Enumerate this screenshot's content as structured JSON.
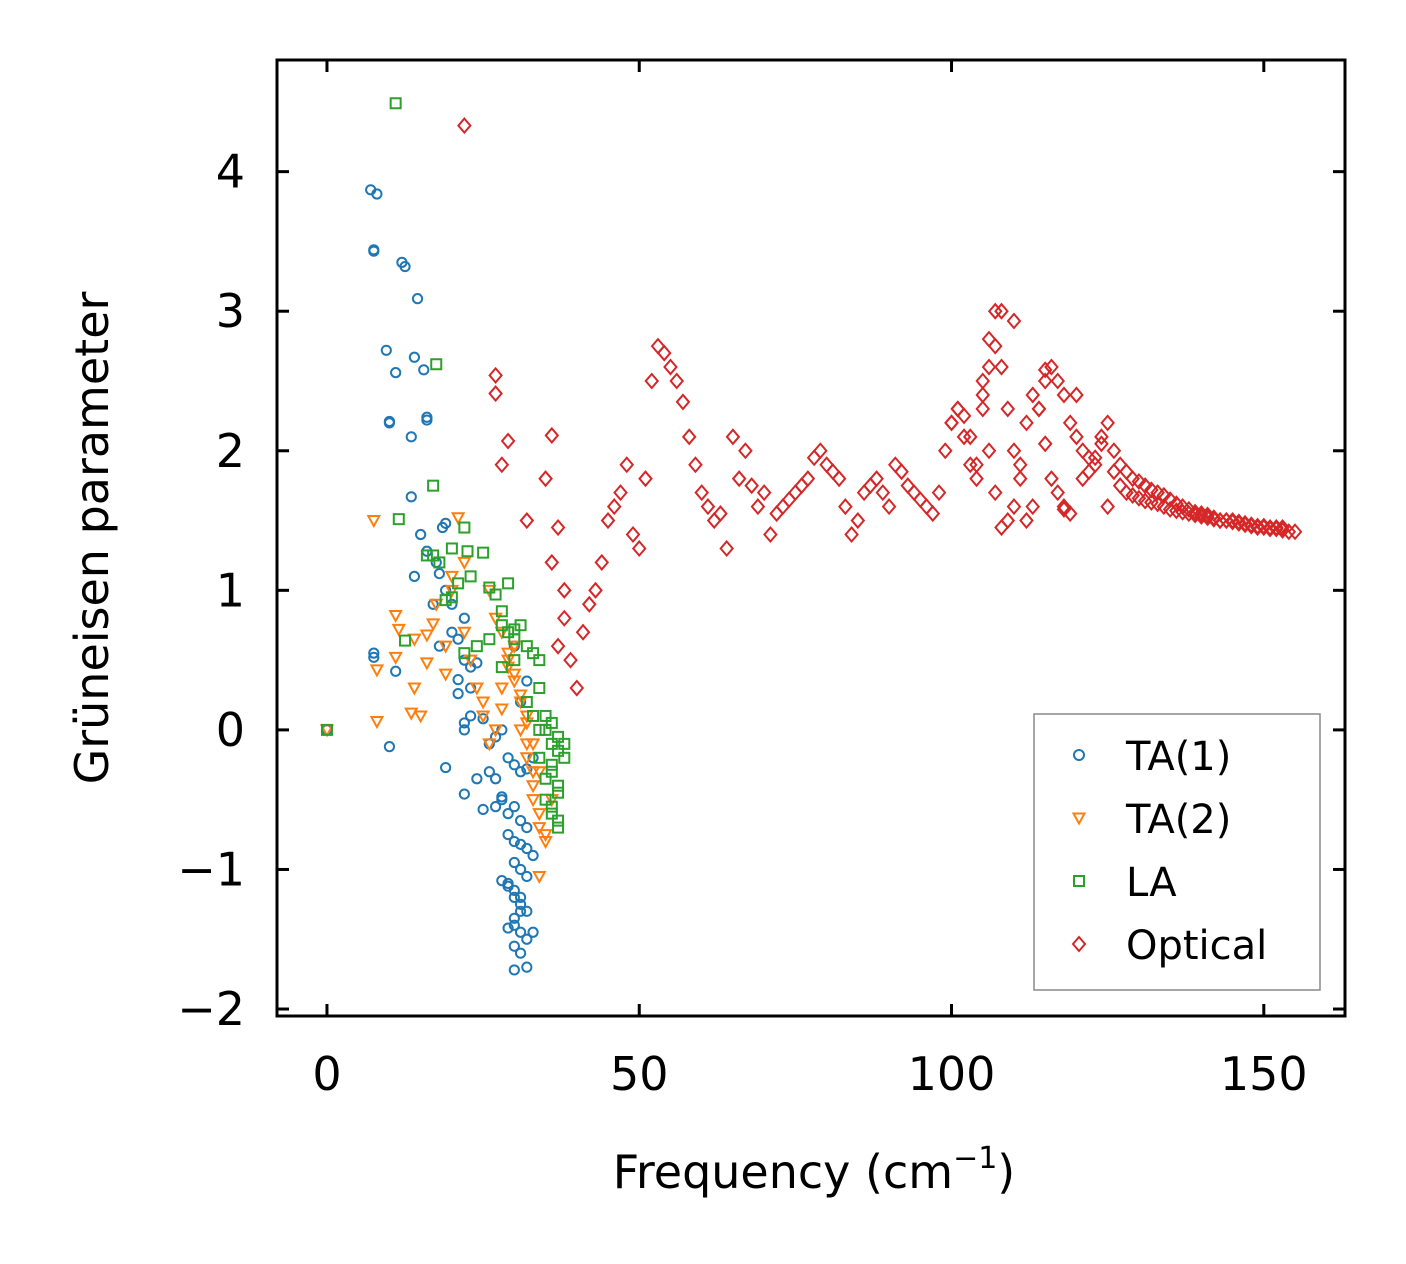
{
  "chart_data": {
    "type": "scatter",
    "title": "",
    "xlabel": "Frequency (cm",
    "xlabel_sup": "−1",
    "xlabel_tail": ")",
    "ylabel": "Grüneisen parameter",
    "xlim": [
      -8,
      163
    ],
    "ylim": [
      -2.05,
      4.8
    ],
    "xticks": [
      0,
      50,
      100,
      150
    ],
    "xtick_labels": [
      "0",
      "50",
      "100",
      "150"
    ],
    "yticks": [
      -2,
      -1,
      0,
      1,
      2,
      3,
      4
    ],
    "ytick_labels": [
      "−2",
      "−1",
      "0",
      "1",
      "2",
      "3",
      "4"
    ],
    "grid": false,
    "legend_position": "lower-right",
    "series": [
      {
        "name": "TA(1)",
        "marker": "circle",
        "color": "#1f77b4",
        "x": [
          0,
          7,
          8,
          7.5,
          7.5,
          9.5,
          12,
          12.5,
          11,
          14.5,
          10,
          14,
          15.5,
          16,
          10,
          13.5,
          16,
          13.5,
          19,
          18.5,
          16,
          15,
          17.5,
          14,
          18,
          17,
          19,
          22,
          18,
          20,
          21,
          22,
          23,
          24,
          21,
          22,
          23,
          25,
          26,
          27,
          28,
          29,
          30,
          31,
          32,
          33,
          26,
          27,
          28,
          29,
          30,
          31,
          32,
          29,
          30,
          31,
          32,
          33,
          30,
          31,
          32,
          29,
          30,
          31,
          31,
          32,
          30,
          30,
          31,
          32,
          33,
          28,
          29,
          30,
          31,
          29,
          30,
          31,
          32,
          30,
          7.5,
          7.5,
          10,
          11,
          19,
          22,
          25,
          27,
          24,
          22,
          23,
          21,
          20,
          28,
          30,
          31,
          32
        ],
        "y": [
          0,
          3.87,
          3.84,
          3.44,
          3.43,
          2.72,
          3.35,
          3.32,
          2.56,
          3.09,
          2.21,
          2.67,
          2.58,
          2.24,
          2.2,
          2.1,
          2.22,
          1.67,
          1.48,
          1.45,
          1.28,
          1.4,
          1.2,
          1.1,
          1.12,
          0.9,
          1.0,
          0.8,
          0.6,
          0.7,
          0.65,
          0.5,
          0.45,
          0.48,
          0.26,
          0.05,
          0.1,
          0.08,
          -0.1,
          -0.05,
          0.0,
          -0.2,
          -0.25,
          -0.3,
          -0.28,
          -0.2,
          -0.3,
          -0.35,
          -0.5,
          -0.6,
          -0.55,
          -0.65,
          -0.7,
          -0.75,
          -0.8,
          -0.82,
          -0.85,
          -0.9,
          -0.95,
          -1.0,
          -1.05,
          -1.1,
          -1.15,
          -1.2,
          -1.25,
          -1.3,
          -1.35,
          -1.4,
          -1.45,
          -1.5,
          -1.45,
          -1.08,
          -1.12,
          -1.2,
          -1.3,
          -1.42,
          -1.55,
          -1.6,
          -1.7,
          -1.72,
          0.55,
          0.52,
          -0.12,
          0.42,
          -0.27,
          -0.46,
          -0.57,
          -0.55,
          -0.35,
          0.0,
          0.3,
          0.36,
          0.9,
          -0.48,
          0.6,
          0.2,
          0.35
        ]
      },
      {
        "name": "TA(2)",
        "marker": "triangle-down",
        "color": "#ff7f0e",
        "x": [
          0,
          7.5,
          8,
          8,
          11,
          11.5,
          11,
          14,
          14,
          13.5,
          15,
          16,
          16,
          17,
          17.5,
          19,
          19,
          20,
          20,
          21,
          22,
          22,
          23,
          24,
          25,
          25,
          26,
          27,
          28,
          28,
          29,
          29,
          30,
          30,
          31,
          31,
          32,
          32,
          33,
          33,
          33,
          34,
          34,
          35,
          35,
          36,
          34,
          33,
          32,
          34,
          26,
          27,
          28,
          29,
          30,
          31,
          32
        ],
        "y": [
          0,
          1.5,
          0.43,
          0.06,
          0.82,
          0.72,
          0.52,
          0.65,
          0.3,
          0.12,
          0.1,
          0.48,
          0.68,
          0.76,
          0.9,
          0.4,
          0.6,
          1.0,
          1.1,
          1.52,
          1.2,
          0.7,
          0.5,
          0.3,
          0.2,
          0.1,
          -0.1,
          0.0,
          0.15,
          0.3,
          0.45,
          0.5,
          0.6,
          0.4,
          0.2,
          0.0,
          -0.1,
          -0.2,
          -0.3,
          -0.4,
          -0.5,
          -0.6,
          -0.7,
          -0.75,
          -0.8,
          -0.5,
          -0.3,
          -0.1,
          0.05,
          -1.05,
          1.0,
          0.8,
          0.7,
          0.55,
          0.35,
          0.25,
          0.1
        ]
      },
      {
        "name": "LA",
        "marker": "square",
        "color": "#2ca02c",
        "x": [
          0,
          11,
          17.5,
          17,
          11.5,
          12.5,
          22,
          20,
          22.5,
          23,
          21,
          20,
          19,
          18,
          17,
          16,
          25,
          26,
          27,
          28,
          28,
          29,
          29,
          30,
          30,
          31,
          32,
          33,
          34,
          34,
          35,
          35,
          36,
          36,
          37,
          37,
          38,
          38,
          36,
          37,
          35,
          36,
          37,
          34,
          35,
          36,
          37,
          22,
          24,
          26,
          28,
          30,
          32,
          33,
          34,
          36,
          37
        ],
        "y": [
          0,
          4.49,
          2.62,
          1.75,
          1.51,
          0.64,
          1.45,
          1.3,
          1.28,
          1.1,
          1.05,
          0.95,
          0.93,
          1.2,
          1.25,
          1.25,
          1.27,
          1.02,
          0.97,
          0.85,
          0.75,
          1.05,
          0.7,
          0.72,
          0.65,
          0.75,
          0.6,
          0.55,
          0.5,
          0.3,
          0.1,
          0.0,
          -0.1,
          0.05,
          -0.05,
          -0.15,
          -0.1,
          -0.2,
          -0.3,
          -0.4,
          -0.5,
          -0.6,
          -0.65,
          -0.2,
          -0.35,
          -0.55,
          -0.7,
          0.55,
          0.6,
          0.65,
          0.45,
          0.5,
          0.2,
          0.1,
          0.0,
          -0.25,
          -0.45
        ]
      },
      {
        "name": "Optical",
        "marker": "diamond",
        "color": "#d62728",
        "x": [
          22,
          27,
          27,
          28,
          29,
          32,
          35,
          36,
          37,
          36,
          38,
          38,
          37,
          39,
          40,
          41,
          42,
          43,
          44,
          45,
          46,
          47,
          48,
          49,
          50,
          51,
          52,
          53,
          54,
          55,
          56,
          57,
          58,
          59,
          60,
          61,
          62,
          63,
          64,
          65,
          66,
          67,
          68,
          69,
          70,
          71,
          72,
          73,
          74,
          75,
          76,
          77,
          78,
          79,
          80,
          81,
          82,
          83,
          84,
          85,
          86,
          87,
          88,
          89,
          90,
          91,
          92,
          93,
          94,
          95,
          96,
          97,
          98,
          99,
          100,
          101,
          102,
          103,
          104,
          105,
          106,
          107,
          108,
          109,
          110,
          111,
          112,
          113,
          114,
          115,
          116,
          117,
          118,
          119,
          120,
          121,
          122,
          123,
          124,
          125,
          126,
          127,
          128,
          129,
          130,
          131,
          132,
          133,
          134,
          135,
          136,
          137,
          138,
          139,
          140,
          141,
          142,
          143,
          144,
          145,
          146,
          147,
          148,
          149,
          150,
          151,
          152,
          153,
          154,
          155,
          107,
          108,
          110,
          105,
          106,
          120,
          125,
          115,
          118,
          100,
          101,
          102,
          103,
          104,
          105,
          106,
          107,
          108,
          109,
          110,
          111,
          112,
          113,
          114,
          115,
          116,
          117,
          118,
          119,
          121,
          122,
          123,
          124,
          126,
          127,
          128,
          129,
          130,
          131,
          132,
          133,
          134,
          135,
          136,
          137,
          138,
          139,
          140,
          141,
          142,
          143,
          144,
          145,
          146,
          147,
          148,
          149,
          150,
          151,
          152,
          153
        ],
        "y": [
          4.33,
          2.54,
          2.41,
          1.9,
          2.07,
          1.5,
          1.8,
          2.11,
          1.45,
          1.2,
          1.0,
          0.8,
          0.6,
          0.5,
          0.3,
          0.7,
          0.9,
          1.0,
          1.2,
          1.5,
          1.6,
          1.7,
          1.9,
          1.4,
          1.3,
          1.8,
          2.5,
          2.75,
          2.7,
          2.6,
          2.5,
          2.35,
          2.1,
          1.9,
          1.7,
          1.6,
          1.5,
          1.55,
          1.3,
          2.1,
          1.8,
          2.0,
          1.75,
          1.6,
          1.7,
          1.4,
          1.55,
          1.6,
          1.65,
          1.7,
          1.75,
          1.8,
          1.95,
          2.0,
          1.9,
          1.85,
          1.8,
          1.6,
          1.4,
          1.5,
          1.7,
          1.75,
          1.8,
          1.7,
          1.6,
          1.9,
          1.85,
          1.75,
          1.7,
          1.65,
          1.6,
          1.55,
          1.7,
          2.0,
          2.2,
          2.3,
          2.25,
          2.1,
          1.9,
          2.3,
          2.6,
          2.75,
          2.6,
          2.3,
          2.0,
          1.8,
          1.5,
          1.6,
          2.3,
          2.5,
          2.6,
          2.5,
          2.4,
          2.2,
          2.1,
          2.0,
          1.95,
          1.9,
          2.1,
          2.2,
          2.0,
          1.9,
          1.85,
          1.8,
          1.78,
          1.75,
          1.72,
          1.7,
          1.68,
          1.65,
          1.62,
          1.6,
          1.58,
          1.56,
          1.55,
          1.54,
          1.52,
          1.5,
          1.5,
          1.49,
          1.48,
          1.47,
          1.46,
          1.45,
          1.45,
          1.44,
          1.44,
          1.43,
          1.42,
          1.42,
          3.0,
          3.0,
          2.93,
          2.4,
          2.8,
          2.4,
          1.6,
          2.58,
          1.58,
          2.2,
          2.3,
          2.1,
          1.9,
          1.8,
          2.5,
          2.0,
          1.7,
          1.45,
          1.5,
          1.6,
          1.9,
          2.2,
          2.4,
          2.3,
          2.05,
          1.8,
          1.7,
          1.6,
          1.55,
          1.8,
          1.85,
          1.95,
          2.05,
          1.85,
          1.75,
          1.7,
          1.68,
          1.66,
          1.64,
          1.63,
          1.62,
          1.6,
          1.58,
          1.57,
          1.56,
          1.55,
          1.54,
          1.53,
          1.52,
          1.51,
          1.5,
          1.5,
          1.5,
          1.49,
          1.48,
          1.47,
          1.46,
          1.46,
          1.45,
          1.45,
          1.45
        ]
      }
    ]
  }
}
